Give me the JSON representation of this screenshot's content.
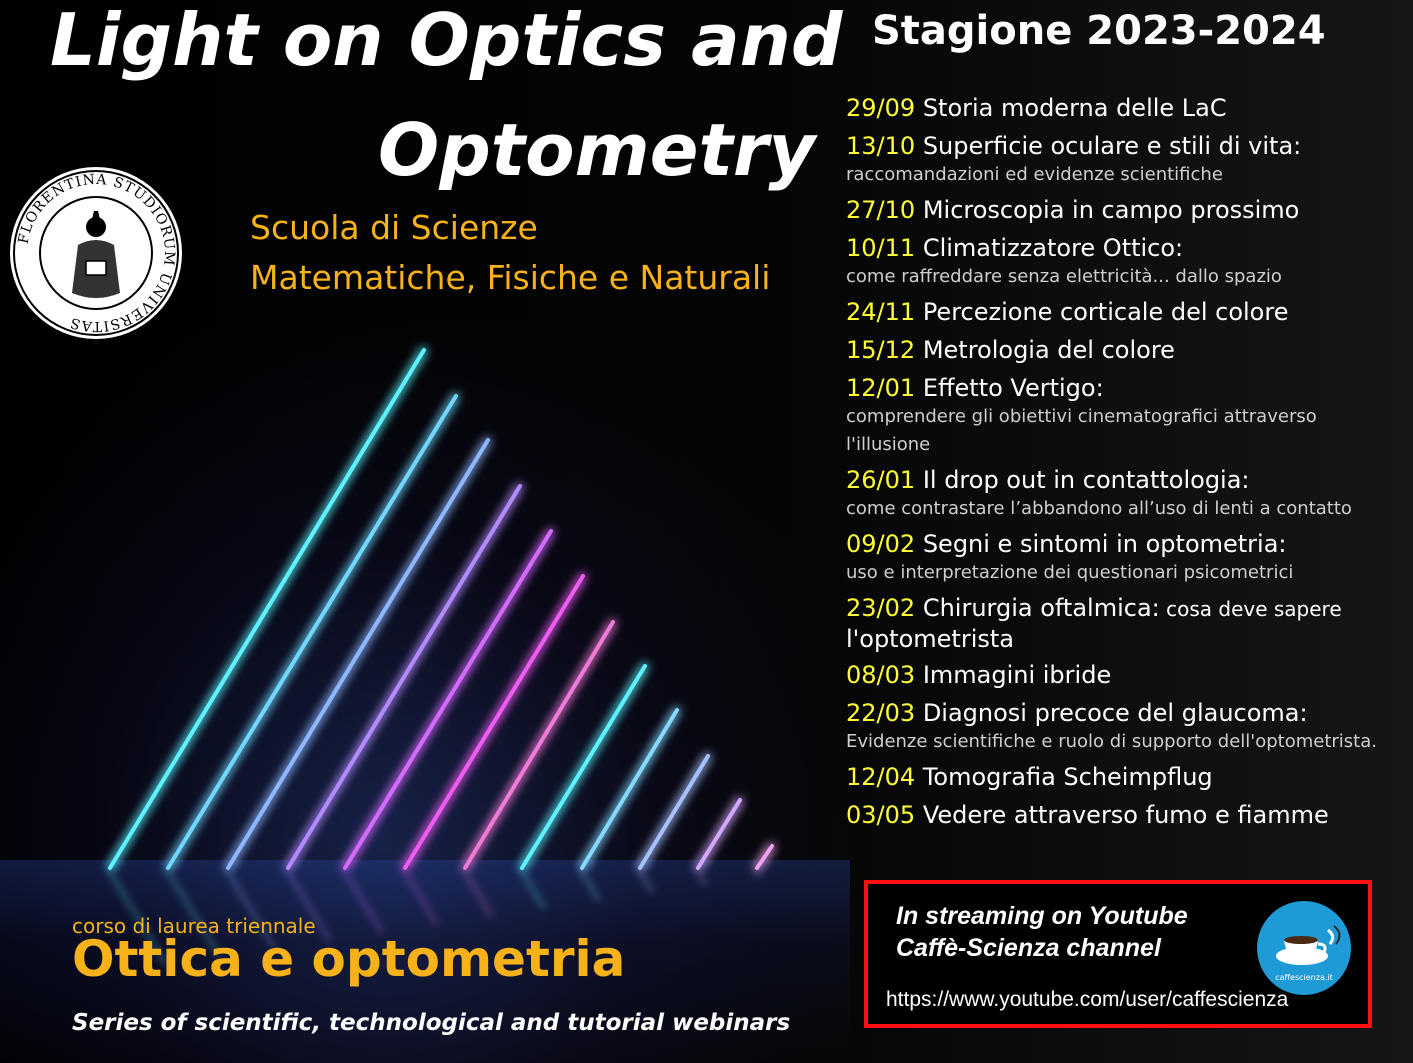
{
  "title": {
    "line1": "Light on Optics and",
    "line2": "Optometry"
  },
  "school": {
    "line1": "Scuola di Scienze",
    "line2": "Matematiche, Fisiche e Naturali"
  },
  "seal": {
    "text": "FLORENTINA STUDIORUM UNIVERSITAS"
  },
  "season": "Stagione 2023-2024",
  "schedule": [
    {
      "date": "29/09",
      "title": "Storia moderna delle LaC"
    },
    {
      "date": "13/10",
      "title": "Superficie oculare e stili di vita:",
      "subtitle": [
        "raccomandazioni ed evidenze scientifiche"
      ]
    },
    {
      "date": "27/10",
      "title": "Microscopia in campo prossimo"
    },
    {
      "date": "10/11",
      "title": "Climatizzatore Ottico:",
      "subtitle": [
        "come raffreddare senza elettricità... dallo spazio"
      ]
    },
    {
      "date": "24/11",
      "title": "Percezione corticale del colore"
    },
    {
      "date": "15/12",
      "title": "Metrologia del colore"
    },
    {
      "date": "12/01",
      "title": "Effetto Vertigo:",
      "subtitle": [
        "comprendere gli obiettivi cinematografici attraverso",
        "l'illusione"
      ]
    },
    {
      "date": "26/01",
      "title": "Il drop out in contattologia:",
      "subtitle": [
        "come contrastare l’abbandono all’uso di lenti a contatto"
      ]
    },
    {
      "date": "09/02",
      "title": "Segni e sintomi in optometria:",
      "subtitle": [
        "uso e interpretazione dei questionari psicometrici"
      ]
    },
    {
      "date": "23/02",
      "title": " Chirurgia oftalmica:",
      "inline_sub": " cosa deve sapere",
      "title_cont": "l'optometrista"
    },
    {
      "date": "08/03",
      "title": "Immagini ibride"
    },
    {
      "date": "22/03",
      "title": "Diagnosi precoce del glaucoma:",
      "subtitle": [
        "Evidenze scientifiche e ruolo di supporto dell'optometrista."
      ]
    },
    {
      "date": "12/04",
      "title": "Tomografia Scheimpflug"
    },
    {
      "date": "03/05",
      "title": "Vedere attraverso fumo e fiamme"
    }
  ],
  "course": {
    "label": "corso di laurea triennale",
    "name": "Ottica e optometria"
  },
  "series_text": "Series of scientific, technological and tutorial webinars",
  "streaming": {
    "line1": "In streaming on Youtube",
    "line2": "Caffè-Scienza channel",
    "url": "https://www.youtube.com/user/caffescienza",
    "logo_text": "caffescienza.it"
  },
  "colors": {
    "accent_yellow": "#ffff33",
    "accent_orange": "#f7b21a",
    "box_border": "#ff1010"
  },
  "neon_colors": [
    "#5ff2ff",
    "#72d8ff",
    "#8fb8ff",
    "#b48cff",
    "#d66cff",
    "#ee5cf2",
    "#f07ad8",
    "#5ff2ff",
    "#86d9ff",
    "#a8c2ff",
    "#d5a9ff",
    "#f0a0f0"
  ]
}
